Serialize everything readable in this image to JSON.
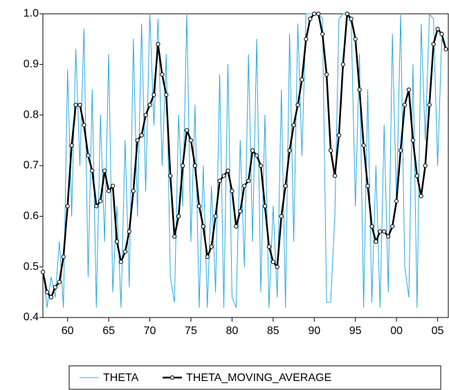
{
  "chart_data": {
    "type": "line",
    "x": [
      1957,
      1957.5,
      1958,
      1958.5,
      1959,
      1959.5,
      1960,
      1960.5,
      1961,
      1961.5,
      1962,
      1962.5,
      1963,
      1963.5,
      1964,
      1964.5,
      1965,
      1965.5,
      1966,
      1966.5,
      1967,
      1967.5,
      1968,
      1968.5,
      1969,
      1969.5,
      1970,
      1970.5,
      1971,
      1971.5,
      1972,
      1972.5,
      1973,
      1973.5,
      1974,
      1974.5,
      1975,
      1975.5,
      1976,
      1976.5,
      1977,
      1977.5,
      1978,
      1978.5,
      1979,
      1979.5,
      1980,
      1980.5,
      1981,
      1981.5,
      1982,
      1982.5,
      1983,
      1983.5,
      1984,
      1984.5,
      1985,
      1985.5,
      1986,
      1986.5,
      1987,
      1987.5,
      1988,
      1988.5,
      1989,
      1989.5,
      1990,
      1990.5,
      1991,
      1991.5,
      1992,
      1992.5,
      1993,
      1993.5,
      1994,
      1994.5,
      1995,
      1995.5,
      1996,
      1996.5,
      1997,
      1997.5,
      1998,
      1998.5,
      1999,
      1999.5,
      2000,
      2000.5,
      2001,
      2001.5,
      2002,
      2002.5,
      2003,
      2003.5,
      2004,
      2004.5,
      2005,
      2005.5,
      2006
    ],
    "series": [
      {
        "name": "THETA",
        "color": "#29a8e0",
        "values": [
          0.5,
          0.42,
          0.48,
          0.44,
          0.55,
          0.42,
          0.89,
          0.6,
          0.93,
          0.7,
          0.97,
          0.48,
          0.85,
          0.42,
          0.8,
          0.55,
          0.92,
          0.45,
          0.62,
          0.42,
          0.75,
          0.46,
          0.95,
          0.6,
          0.98,
          0.65,
          1.0,
          0.78,
          0.99,
          0.7,
          0.92,
          0.48,
          0.43,
          0.8,
          0.62,
          1.0,
          0.55,
          0.82,
          0.42,
          0.7,
          0.42,
          0.66,
          0.45,
          0.88,
          0.42,
          0.9,
          0.44,
          0.42,
          0.75,
          0.5,
          0.92,
          0.55,
          0.95,
          0.45,
          0.8,
          0.42,
          0.62,
          0.44,
          0.85,
          0.42,
          0.96,
          0.55,
          0.98,
          0.72,
          1.0,
          1.0,
          1.0,
          1.0,
          0.99,
          0.43,
          0.43,
          0.6,
          0.99,
          1.0,
          1.0,
          0.98,
          0.62,
          0.92,
          0.42,
          0.85,
          0.43,
          0.7,
          0.42,
          0.78,
          0.45,
          0.96,
          0.62,
          1.0,
          0.5,
          0.44,
          0.9,
          0.42,
          0.98,
          0.75,
          1.0,
          0.99,
          0.7,
          0.95,
          0.93
        ]
      },
      {
        "name": "THETA_MOVING_AVERAGE",
        "color": "#000000",
        "values": [
          0.49,
          0.45,
          0.44,
          0.46,
          0.47,
          0.52,
          0.62,
          0.74,
          0.82,
          0.82,
          0.78,
          0.72,
          0.69,
          0.62,
          0.63,
          0.69,
          0.65,
          0.66,
          0.55,
          0.51,
          0.53,
          0.57,
          0.65,
          0.75,
          0.76,
          0.8,
          0.82,
          0.84,
          0.94,
          0.88,
          0.84,
          0.68,
          0.56,
          0.6,
          0.7,
          0.77,
          0.75,
          0.7,
          0.62,
          0.58,
          0.52,
          0.54,
          0.6,
          0.67,
          0.68,
          0.69,
          0.65,
          0.58,
          0.61,
          0.66,
          0.67,
          0.73,
          0.72,
          0.7,
          0.62,
          0.54,
          0.51,
          0.5,
          0.6,
          0.66,
          0.73,
          0.78,
          0.82,
          0.87,
          0.95,
          0.99,
          1.0,
          1.0,
          0.96,
          0.88,
          0.73,
          0.68,
          0.76,
          0.9,
          1.0,
          0.99,
          0.95,
          0.85,
          0.74,
          0.66,
          0.58,
          0.55,
          0.57,
          0.57,
          0.56,
          0.58,
          0.63,
          0.73,
          0.82,
          0.85,
          0.75,
          0.68,
          0.64,
          0.7,
          0.82,
          0.94,
          0.97,
          0.96,
          0.93
        ]
      }
    ],
    "xlim": [
      1957,
      2006.3
    ],
    "xticks": [
      {
        "value": 1960,
        "label": "60"
      },
      {
        "value": 1965,
        "label": "65"
      },
      {
        "value": 1970,
        "label": "70"
      },
      {
        "value": 1975,
        "label": "75"
      },
      {
        "value": 1980,
        "label": "80"
      },
      {
        "value": 1985,
        "label": "85"
      },
      {
        "value": 1990,
        "label": "90"
      },
      {
        "value": 1995,
        "label": "95"
      },
      {
        "value": 2000,
        "label": "00"
      },
      {
        "value": 2005,
        "label": "05"
      }
    ],
    "ylim": [
      0.4,
      1.0
    ],
    "yticks": [
      0.4,
      0.5,
      0.6,
      0.7,
      0.8,
      0.9,
      {
        "value": 1,
        "label": "1.0"
      }
    ],
    "legend": "bottom"
  }
}
